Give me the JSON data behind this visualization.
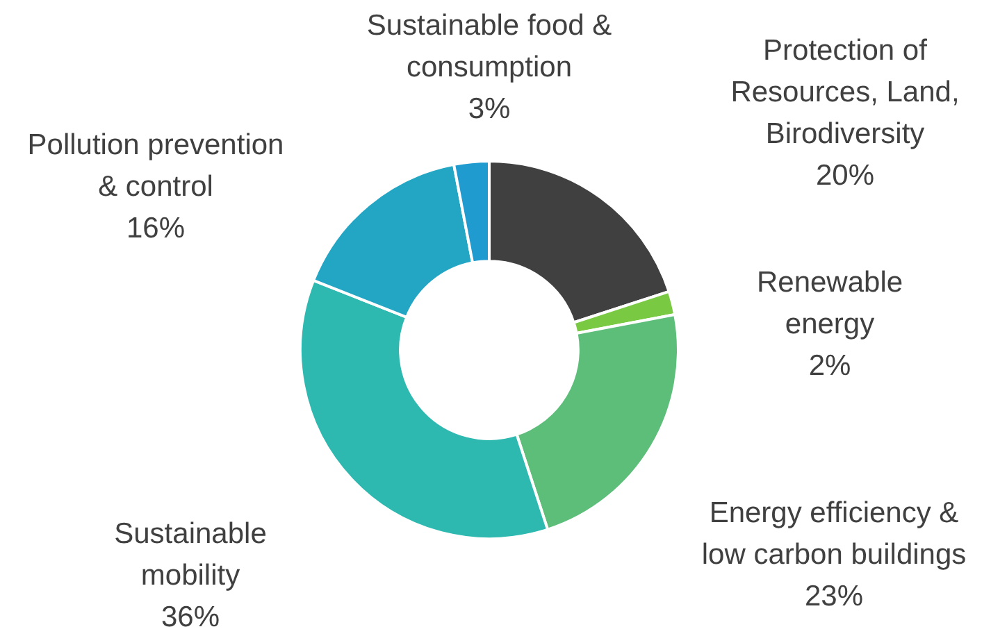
{
  "chart_data": {
    "type": "donut",
    "categories": [
      "Protection of Resources, Land, Birodiversity",
      "Renewable energy",
      "Energy efficiency & low carbon buildings",
      "Sustainable mobility",
      "Pollution prevention & control",
      "Sustainable food & consumption"
    ],
    "values": [
      20,
      2,
      23,
      36,
      16,
      3
    ],
    "value_labels": [
      "20%",
      "2%",
      "23%",
      "36%",
      "16%",
      "3%"
    ],
    "colors": [
      "#404040",
      "#7ac943",
      "#5dbe7a",
      "#2db8b0",
      "#22a6c4",
      "#1f9bd0"
    ]
  }
}
